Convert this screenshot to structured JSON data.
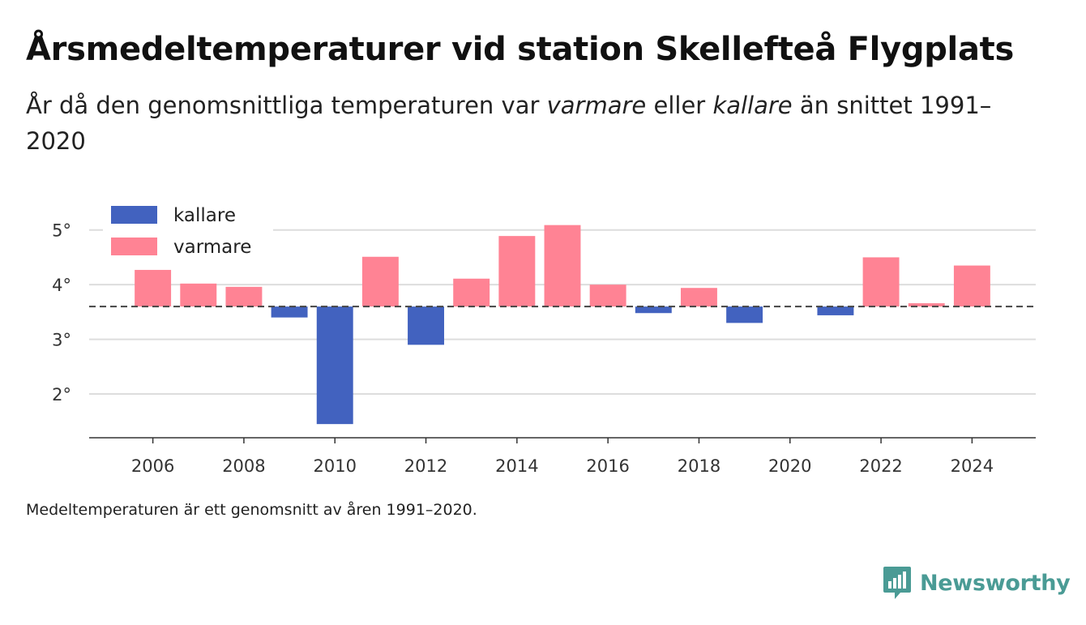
{
  "title": "Årsmedeltemperaturer vid station Skellefteå Flygplats",
  "subtitle": {
    "part1": "År då den genomsnittliga temperaturen var ",
    "em1": "varmare",
    "part2": " eller ",
    "em2": "kallare",
    "part3": " än snittet 1991–2020"
  },
  "footnote": "Medeltemperaturen är ett genomsnitt av åren 1991–2020.",
  "brand": {
    "name": "Newsworthy",
    "icon": "bar-chart-speech-bubble-icon",
    "color": "#4a9b95"
  },
  "chart_data": {
    "type": "bar",
    "title": "Årsmedeltemperaturer vid station Skellefteå Flygplats",
    "baseline": 3.6,
    "ylim": [
      1.2,
      5.5
    ],
    "yticks": [
      2,
      3,
      4,
      5
    ],
    "ytick_labels": [
      "2°",
      "3°",
      "4°",
      "5°"
    ],
    "xlim": [
      2004.6,
      2025.4
    ],
    "xticks": [
      2006,
      2008,
      2010,
      2012,
      2014,
      2016,
      2018,
      2020,
      2022,
      2024
    ],
    "xtick_labels": [
      "2006",
      "2008",
      "2010",
      "2012",
      "2014",
      "2016",
      "2018",
      "2020",
      "2022",
      "2024"
    ],
    "grid": true,
    "legend_position": "top-left",
    "colors": {
      "kallare": "#4262bf",
      "varmare": "#ff8394",
      "baseline": "#444444",
      "grid": "#dddddd"
    },
    "series": [
      {
        "name": "kallare",
        "color": "#4262bf"
      },
      {
        "name": "varmare",
        "color": "#ff8394"
      }
    ],
    "x": [
      2006,
      2007,
      2008,
      2009,
      2010,
      2011,
      2012,
      2013,
      2014,
      2015,
      2016,
      2017,
      2018,
      2019,
      2021,
      2022,
      2023,
      2024
    ],
    "values": [
      4.27,
      4.02,
      3.96,
      3.4,
      1.45,
      4.51,
      2.9,
      4.11,
      4.89,
      5.09,
      4.0,
      3.48,
      3.94,
      3.3,
      3.44,
      4.5,
      3.66,
      4.35
    ]
  }
}
